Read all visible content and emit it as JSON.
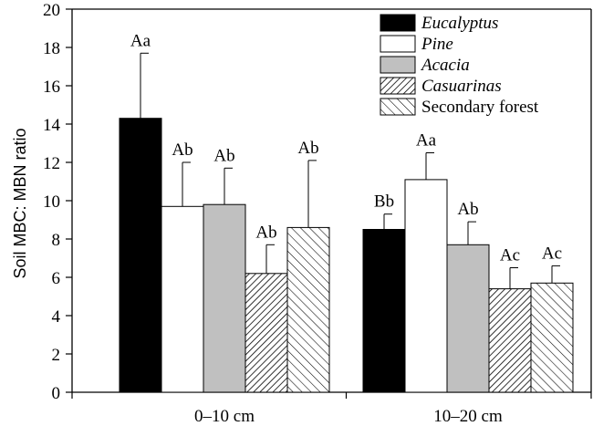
{
  "chart_data": {
    "type": "bar",
    "ylabel": "Soil MBC: MBN ratio",
    "xlabel": "",
    "ylim": [
      0,
      20
    ],
    "yticks": [
      0,
      2,
      4,
      6,
      8,
      10,
      12,
      14,
      16,
      18,
      20
    ],
    "categories": [
      "0–10 cm",
      "10–20 cm"
    ],
    "series": [
      {
        "name": "Eucalyptus",
        "italic": true,
        "fill": "solid-black",
        "values": [
          14.3,
          8.5
        ],
        "errors": [
          3.4,
          0.8
        ],
        "labels": [
          "Aa",
          "Bb"
        ]
      },
      {
        "name": "Pine",
        "italic": true,
        "fill": "white",
        "values": [
          9.7,
          11.1
        ],
        "errors": [
          2.3,
          1.4
        ],
        "labels": [
          "Ab",
          "Aa"
        ]
      },
      {
        "name": "Acacia",
        "italic": true,
        "fill": "light-gray",
        "values": [
          9.8,
          7.7
        ],
        "errors": [
          1.9,
          1.2
        ],
        "labels": [
          "Ab",
          "Ab"
        ]
      },
      {
        "name": "Casuarinas",
        "italic": true,
        "fill": "dense-diagonal-hatch",
        "values": [
          6.2,
          5.4
        ],
        "errors": [
          1.5,
          1.1
        ],
        "labels": [
          "Ab",
          "Ac"
        ]
      },
      {
        "name": "Secondary forest",
        "italic": false,
        "fill": "sparse-back-diagonal-hatch",
        "values": [
          8.6,
          5.7
        ],
        "errors": [
          3.5,
          0.9
        ],
        "labels": [
          "Ab",
          "Ac"
        ]
      }
    ],
    "legend_position": "top-right",
    "grid": false
  }
}
